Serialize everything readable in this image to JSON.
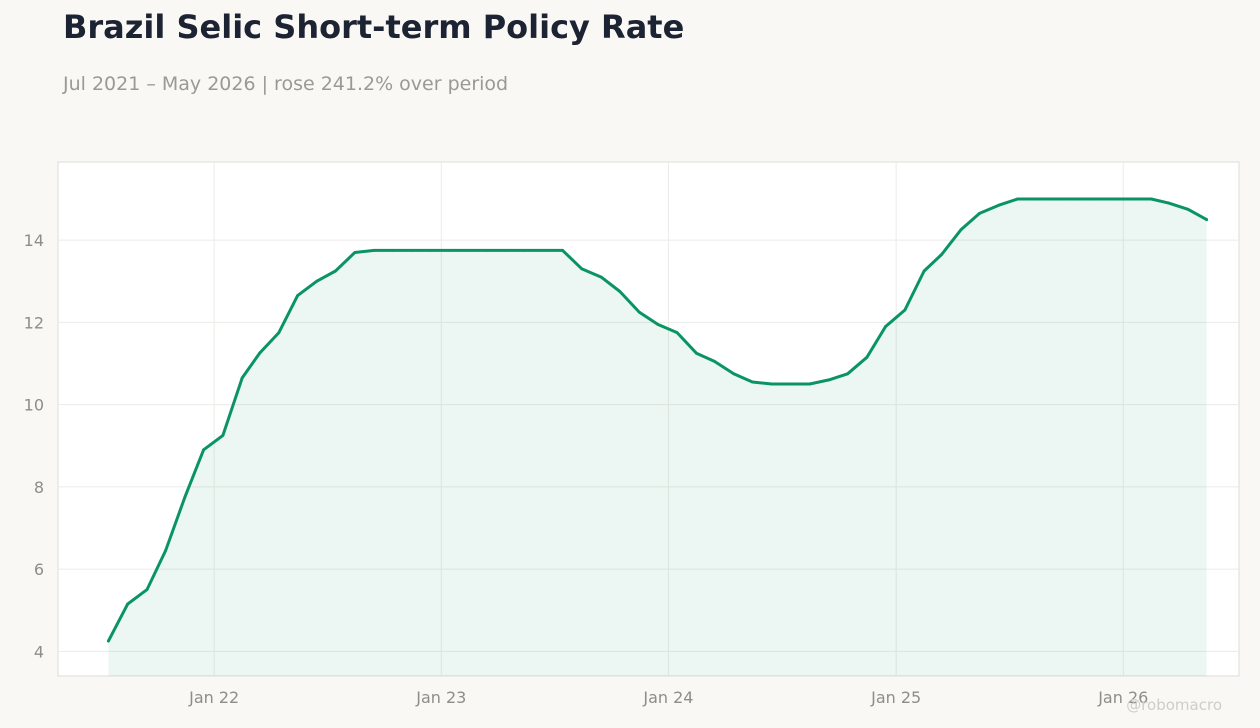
{
  "title": "Brazil Selic Short-term Policy Rate",
  "subtitle": "Jul 2021 – May 2026 | rose 241.2% over period",
  "watermark": "@robomacro",
  "colors": {
    "line": "#0a9466",
    "fill": "#0a9466",
    "background": "#f9f8f5",
    "plot_background": "#ffffff",
    "grid": "#ecebe7",
    "tick_text": "#8e8d88"
  },
  "chart_data": {
    "type": "area",
    "title": "Brazil Selic Short-term Policy Rate",
    "subtitle": "Jul 2021 – May 2026 | rose 241.2% over period",
    "xlabel": "",
    "ylabel": "",
    "grid": true,
    "ylim": [
      3.4,
      15.9
    ],
    "xlim": [
      "2021-04-25",
      "2026-07-06"
    ],
    "x_ticks": [
      {
        "date": "2022-01-01",
        "label": "Jan 22"
      },
      {
        "date": "2023-01-01",
        "label": "Jan 23"
      },
      {
        "date": "2024-01-01",
        "label": "Jan 24"
      },
      {
        "date": "2025-01-01",
        "label": "Jan 25"
      },
      {
        "date": "2026-01-01",
        "label": "Jan 26"
      }
    ],
    "y_ticks": [
      4,
      6,
      8,
      10,
      12,
      14
    ],
    "series": [
      {
        "x": [
          "2021-07",
          "2021-08",
          "2021-09",
          "2021-10",
          "2021-11",
          "2021-12",
          "2022-01",
          "2022-02",
          "2022-03",
          "2022-04",
          "2022-05",
          "2022-06",
          "2022-07",
          "2022-08",
          "2022-09",
          "2022-10",
          "2022-11",
          "2022-12",
          "2023-01",
          "2023-02",
          "2023-03",
          "2023-04",
          "2023-05",
          "2023-06",
          "2023-07",
          "2023-08",
          "2023-09",
          "2023-10",
          "2023-11",
          "2023-12",
          "2024-01",
          "2024-02",
          "2024-03",
          "2024-04",
          "2024-05",
          "2024-06",
          "2024-07",
          "2024-08",
          "2024-09",
          "2024-10",
          "2024-11",
          "2024-12",
          "2025-01",
          "2025-02",
          "2025-03",
          "2025-04",
          "2025-05",
          "2025-06",
          "2025-07",
          "2025-08",
          "2025-09",
          "2025-10",
          "2025-11",
          "2025-12",
          "2026-01",
          "2026-02",
          "2026-03",
          "2026-04",
          "2026-05"
        ],
        "values": [
          4.25,
          5.15,
          5.5,
          6.45,
          7.75,
          8.9,
          9.25,
          10.65,
          11.25,
          11.75,
          12.65,
          13.0,
          13.25,
          13.7,
          13.75,
          13.75,
          13.75,
          13.75,
          13.75,
          13.75,
          13.75,
          13.75,
          13.75,
          13.75,
          13.75,
          13.3,
          13.1,
          12.75,
          12.25,
          11.95,
          11.75,
          11.25,
          11.05,
          10.75,
          10.55,
          10.5,
          10.5,
          10.5,
          10.6,
          10.75,
          11.15,
          11.9,
          12.3,
          13.25,
          13.65,
          14.25,
          14.65,
          14.85,
          15.0,
          15.0,
          15.0,
          15.0,
          15.0,
          15.0,
          15.0,
          15.0,
          14.9,
          14.75,
          14.5
        ]
      }
    ]
  }
}
